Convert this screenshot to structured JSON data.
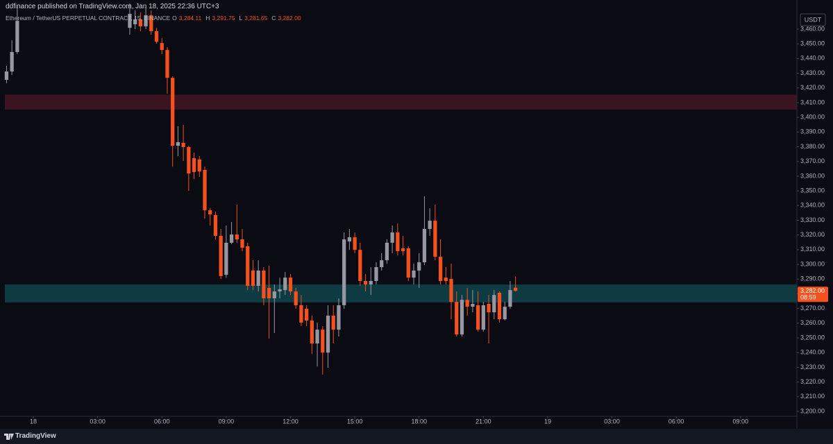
{
  "chart_data": {
    "type": "candlestick",
    "title": "ddfinance published on TradingView.com, Jan 18, 2025 22:36 UTC+3",
    "symbol": "Ethereum / TetherUS PERPETUAL CONTRACT, 15, BINANCE",
    "ohlc_keys": [
      "O",
      "H",
      "L",
      "C"
    ],
    "ohlc_labels": [
      "3,284.11",
      "3,291.75",
      "3,281.65",
      "3,282.00"
    ],
    "currency": "USDT",
    "last_price_label": "3,282.00",
    "countdown": "08:59",
    "up_color": "#9598a1",
    "down_color": "#f4511e",
    "x": [
      -1.25,
      -1,
      -0.75,
      4.5,
      4.75,
      5,
      5.25,
      5.5,
      5.75,
      6,
      6.25,
      6.5,
      6.75,
      7,
      7.25,
      7.5,
      7.75,
      8,
      8.25,
      8.5,
      8.75,
      9,
      9.25,
      9.5,
      9.75,
      10,
      10.25,
      10.5,
      10.75,
      11,
      11.25,
      11.5,
      11.75,
      12,
      12.25,
      12.5,
      12.75,
      13,
      13.25,
      13.5,
      13.75,
      14,
      14.25,
      14.5,
      14.75,
      15,
      15.25,
      15.5,
      15.75,
      16,
      16.25,
      16.5,
      16.75,
      17,
      17.25,
      17.5,
      17.75,
      18,
      18.25,
      18.5,
      18.75,
      19,
      19.25,
      19.5,
      19.75,
      20,
      20.25,
      20.5,
      20.75,
      21,
      21.25,
      21.5,
      21.75,
      22,
      22.25,
      22.5
    ],
    "open": [
      3425.5,
      3431.2,
      3444.4,
      3460.9,
      3463.3,
      3466.6,
      3461.9,
      3469.4,
      3458.6,
      3450.5,
      3445.8,
      3426.9,
      3380.7,
      3382.6,
      3379.8,
      3372.2,
      3371.3,
      3364.2,
      3336.8,
      3333.5,
      3319.4,
      3292.9,
      3314.7,
      3320.3,
      3317,
      3312.3,
      3295.8,
      3285.4,
      3295.8,
      3284,
      3276.9,
      3281.6,
      3282.5,
      3291,
      3281.6,
      3272.2,
      3269.8,
      3261.8,
      3246.2,
      3255.6,
      3240,
      3265.1,
      3255.6,
      3272.2,
      3315.6,
      3318.4,
      3309.9,
      3288.7,
      3286.3,
      3288.7,
      3298.1,
      3302.8,
      3314.7,
      3321.7,
      3310.9,
      3310.9,
      3291,
      3295.8,
      3301.4,
      3324.1,
      3329.7,
      3305.2,
      3291,
      3290.1,
      3274.5,
      3252.3,
      3275.9,
      3271.2,
      3272.2,
      3255.6,
      3273.1,
      3267.4,
      3280.7,
      3262.7,
      3271.2,
      3284.11
    ],
    "high": [
      3435,
      3452.4,
      3475,
      3477.4,
      3472.7,
      3471.3,
      3475.1,
      3472.7,
      3460.9,
      3453.8,
      3447.7,
      3427.9,
      3393.9,
      3394.9,
      3380.7,
      3376,
      3373.6,
      3366.5,
      3338.2,
      3335.9,
      3324.1,
      3326.4,
      3328.8,
      3340.6,
      3324.1,
      3314.7,
      3302.8,
      3302.8,
      3298.1,
      3299.1,
      3286.3,
      3291,
      3294.8,
      3293.4,
      3284,
      3279.2,
      3272.2,
      3265.1,
      3260.4,
      3258,
      3272.2,
      3272.2,
      3276.9,
      3321.7,
      3324.1,
      3321.7,
      3314.7,
      3293.4,
      3298.1,
      3301.4,
      3307.6,
      3317,
      3326.4,
      3327.8,
      3319.4,
      3312.3,
      3300.5,
      3307.6,
      3346.3,
      3338.2,
      3340.6,
      3317,
      3298.1,
      3300.5,
      3281.6,
      3279.2,
      3284,
      3282.5,
      3281.6,
      3274.5,
      3279.2,
      3282.5,
      3281.6,
      3274.5,
      3288.7,
      3291.75
    ],
    "low": [
      3423.2,
      3428.8,
      3443,
      3456.2,
      3460,
      3458.6,
      3460,
      3456.2,
      3450.1,
      3443,
      3416.1,
      3366.5,
      3373.6,
      3370.3,
      3350,
      3358,
      3359.5,
      3331.2,
      3326.4,
      3317,
      3290.1,
      3291,
      3313.7,
      3314.7,
      3309,
      3282.5,
      3282.5,
      3281.6,
      3272.2,
      3249.5,
      3253.3,
      3276.9,
      3279.2,
      3279.2,
      3269.8,
      3258,
      3258,
      3239.1,
      3230.6,
      3225,
      3229.7,
      3246.2,
      3250.9,
      3269.8,
      3309.9,
      3307.6,
      3285.4,
      3281.6,
      3279.2,
      3286.3,
      3295.8,
      3300.5,
      3307.6,
      3306.1,
      3306.1,
      3288.7,
      3286.3,
      3284,
      3299.5,
      3319.4,
      3302.8,
      3286.3,
      3286.3,
      3262.7,
      3250.9,
      3250.9,
      3265.1,
      3267.4,
      3254.2,
      3254.2,
      3246.2,
      3262.7,
      3260.4,
      3261.8,
      3269.8,
      3281.65
    ],
    "close": [
      3431.2,
      3444.4,
      3465.6,
      3470.4,
      3466.6,
      3461.9,
      3469.4,
      3458.6,
      3451.5,
      3445.8,
      3426.9,
      3380.7,
      3383.1,
      3379.8,
      3361.8,
      3362.8,
      3363.2,
      3336.8,
      3334,
      3319.4,
      3292,
      3314.7,
      3320.3,
      3317,
      3311.3,
      3285.4,
      3285.4,
      3295.8,
      3276.9,
      3276.9,
      3281.6,
      3283,
      3291,
      3281.6,
      3272.2,
      3260.4,
      3261.8,
      3246.2,
      3255.6,
      3240,
      3265.1,
      3255.6,
      3272.2,
      3317,
      3318.4,
      3309.9,
      3288.7,
      3286.3,
      3288.7,
      3298.1,
      3302.8,
      3314.7,
      3321.7,
      3309,
      3309,
      3291,
      3295.8,
      3301.4,
      3324.1,
      3329.7,
      3305.2,
      3288.7,
      3288.7,
      3274.5,
      3252.3,
      3275.9,
      3271.2,
      3273.1,
      3255.6,
      3272.2,
      3267.4,
      3279.2,
      3262.7,
      3271.2,
      3282.5,
      3282
    ],
    "zones": [
      {
        "from": 3405.2,
        "to": 3415.5,
        "color": "#3a1421"
      },
      {
        "from": 3274.1,
        "to": 3286.3,
        "color": "#0e3a42"
      }
    ],
    "xlim": [
      -1.555,
      35.63
    ],
    "ylim": [
      3196.7,
      3479.8
    ],
    "xticks": [
      {
        "value": 0,
        "label": "18"
      },
      {
        "value": 3,
        "label": "03:00"
      },
      {
        "value": 6,
        "label": "06:00"
      },
      {
        "value": 9,
        "label": "09:00"
      },
      {
        "value": 12,
        "label": "12:00"
      },
      {
        "value": 15,
        "label": "15:00"
      },
      {
        "value": 18,
        "label": "18:00"
      },
      {
        "value": 21,
        "label": "21:00"
      },
      {
        "value": 24,
        "label": "19"
      },
      {
        "value": 27,
        "label": "03:00"
      },
      {
        "value": 30,
        "label": "06:00"
      },
      {
        "value": 33,
        "label": "09:00"
      }
    ],
    "yticks": [
      {
        "value": 3200,
        "label": "3,200.00"
      },
      {
        "value": 3210,
        "label": "3,210.00"
      },
      {
        "value": 3220,
        "label": "3,220.00"
      },
      {
        "value": 3230,
        "label": "3,230.00"
      },
      {
        "value": 3240,
        "label": "3,240.00"
      },
      {
        "value": 3250,
        "label": "3,250.00"
      },
      {
        "value": 3260,
        "label": "3,260.00"
      },
      {
        "value": 3270,
        "label": "3,270.00"
      },
      {
        "value": 3280,
        "label": "3,280.00"
      },
      {
        "value": 3290,
        "label": "3,290.00"
      },
      {
        "value": 3300,
        "label": "3,300.00"
      },
      {
        "value": 3310,
        "label": "3,310.00"
      },
      {
        "value": 3320,
        "label": "3,320.00"
      },
      {
        "value": 3330,
        "label": "3,330.00"
      },
      {
        "value": 3340,
        "label": "3,340.00"
      },
      {
        "value": 3350,
        "label": "3,350.00"
      },
      {
        "value": 3360,
        "label": "3,360.00"
      },
      {
        "value": 3370,
        "label": "3,370.00"
      },
      {
        "value": 3380,
        "label": "3,380.00"
      },
      {
        "value": 3390,
        "label": "3,390.00"
      },
      {
        "value": 3400,
        "label": "3,400.00"
      },
      {
        "value": 3410,
        "label": "3,410.00"
      },
      {
        "value": 3420,
        "label": "3,420.00"
      },
      {
        "value": 3430,
        "label": "3,430.00"
      },
      {
        "value": 3440,
        "label": "3,440.00"
      },
      {
        "value": 3450,
        "label": "3,450.00"
      },
      {
        "value": 3460,
        "label": "3,460.00"
      }
    ]
  },
  "footer": {
    "brand": "TradingView"
  }
}
